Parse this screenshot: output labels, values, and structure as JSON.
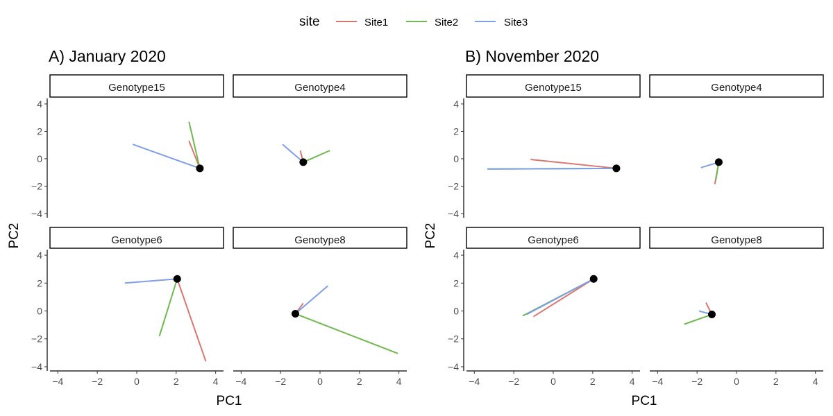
{
  "legend": {
    "title": "site",
    "entries": [
      {
        "name": "Site1",
        "color": "#d9776f"
      },
      {
        "name": "Site2",
        "color": "#6eb94f"
      },
      {
        "name": "Site3",
        "color": "#7f9ee8"
      }
    ]
  },
  "chart_data": [
    {
      "type": "line",
      "title": "A) January 2020",
      "xlabel": "PC1",
      "ylabel": "PC2",
      "xlim": [
        -4.4,
        4.4
      ],
      "ylim": [
        -4.2,
        4.4
      ],
      "xticks": [
        -4,
        -2,
        0,
        2,
        4
      ],
      "yticks": [
        -4,
        -2,
        0,
        2,
        4
      ],
      "grid": false,
      "facets": [
        {
          "label": "Genotype15",
          "centroid": [
            3.2,
            -0.7
          ],
          "segments": [
            {
              "site": "Site1",
              "x": 2.65,
              "y": 1.3
            },
            {
              "site": "Site2",
              "x": 2.65,
              "y": 2.7
            },
            {
              "site": "Site3",
              "x": -0.2,
              "y": 1.05
            }
          ]
        },
        {
          "label": "Genotype4",
          "centroid": [
            -0.85,
            -0.25
          ],
          "segments": [
            {
              "site": "Site1",
              "x": -1.0,
              "y": 0.6
            },
            {
              "site": "Site2",
              "x": 0.5,
              "y": 0.6
            },
            {
              "site": "Site3",
              "x": -1.9,
              "y": 1.05
            }
          ]
        },
        {
          "label": "Genotype6",
          "centroid": [
            2.05,
            2.3
          ],
          "segments": [
            {
              "site": "Site1",
              "x": 3.5,
              "y": -3.6
            },
            {
              "site": "Site2",
              "x": 1.15,
              "y": -1.8
            },
            {
              "site": "Site3",
              "x": -0.6,
              "y": 2.0
            }
          ]
        },
        {
          "label": "Genotype8",
          "centroid": [
            -1.25,
            -0.2
          ],
          "segments": [
            {
              "site": "Site1",
              "x": -0.85,
              "y": 0.55
            },
            {
              "site": "Site2",
              "x": 3.95,
              "y": -3.05
            },
            {
              "site": "Site3",
              "x": 0.4,
              "y": 1.8
            }
          ]
        }
      ]
    },
    {
      "type": "line",
      "title": "B) November 2020",
      "xlabel": "PC1",
      "ylabel": "PC2",
      "xlim": [
        -4.4,
        4.4
      ],
      "ylim": [
        -4.2,
        4.4
      ],
      "xticks": [
        -4,
        -2,
        0,
        2,
        4
      ],
      "yticks": [
        -4,
        -2,
        0,
        2,
        4
      ],
      "grid": false,
      "facets": [
        {
          "label": "Genotype15",
          "centroid": [
            3.2,
            -0.7
          ],
          "segments": [
            {
              "site": "Site1",
              "x": -1.15,
              "y": -0.05
            },
            {
              "site": "Site2",
              "x": -3.3,
              "y": -0.75
            },
            {
              "site": "Site3",
              "x": -3.35,
              "y": -0.75
            }
          ]
        },
        {
          "label": "Genotype4",
          "centroid": [
            -0.9,
            -0.25
          ],
          "segments": [
            {
              "site": "Site1",
              "x": -1.1,
              "y": -1.85
            },
            {
              "site": "Site2",
              "x": -1.05,
              "y": -1.55
            },
            {
              "site": "Site3",
              "x": -1.8,
              "y": -0.65
            }
          ]
        },
        {
          "label": "Genotype6",
          "centroid": [
            2.05,
            2.3
          ],
          "segments": [
            {
              "site": "Site1",
              "x": -1.0,
              "y": -0.4
            },
            {
              "site": "Site2",
              "x": -1.55,
              "y": -0.35
            },
            {
              "site": "Site3",
              "x": -1.35,
              "y": -0.25
            }
          ]
        },
        {
          "label": "Genotype8",
          "centroid": [
            -1.25,
            -0.25
          ],
          "segments": [
            {
              "site": "Site1",
              "x": -1.55,
              "y": 0.6
            },
            {
              "site": "Site2",
              "x": -2.65,
              "y": -0.95
            },
            {
              "site": "Site3",
              "x": -1.9,
              "y": 0.0
            }
          ]
        }
      ]
    }
  ]
}
